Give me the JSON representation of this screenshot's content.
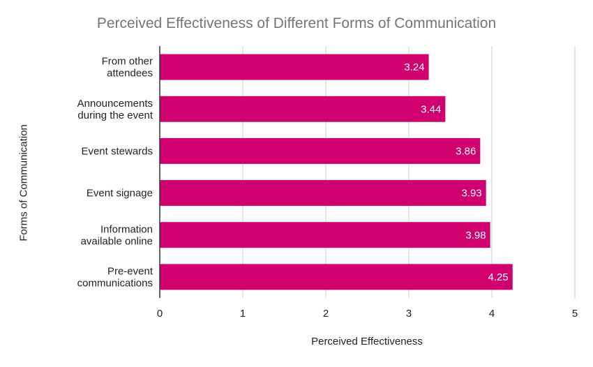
{
  "chart_data": {
    "type": "bar",
    "orientation": "horizontal",
    "title": "Perceived Effectiveness of Different Forms of Communication",
    "xlabel": "Perceived Effectiveness",
    "ylabel": "Forms of Communication",
    "categories": [
      [
        "From other",
        "attendees"
      ],
      [
        "Announcements",
        "during the event"
      ],
      [
        "Event stewards"
      ],
      [
        "Event signage"
      ],
      [
        "Information",
        "available online"
      ],
      [
        "Pre-event",
        "communications"
      ]
    ],
    "values": [
      3.24,
      3.44,
      3.86,
      3.93,
      3.98,
      4.25
    ],
    "value_labels": [
      "3.24",
      "3.44",
      "3.86",
      "3.93",
      "3.98",
      "4.25"
    ],
    "xlim": [
      0,
      5
    ],
    "x_ticks": [
      "0",
      "1",
      "2",
      "3",
      "4",
      "5"
    ],
    "grid": true,
    "bar_color": "#d1006f",
    "grid_color": "#cccccc",
    "axis_color": "#333333"
  }
}
